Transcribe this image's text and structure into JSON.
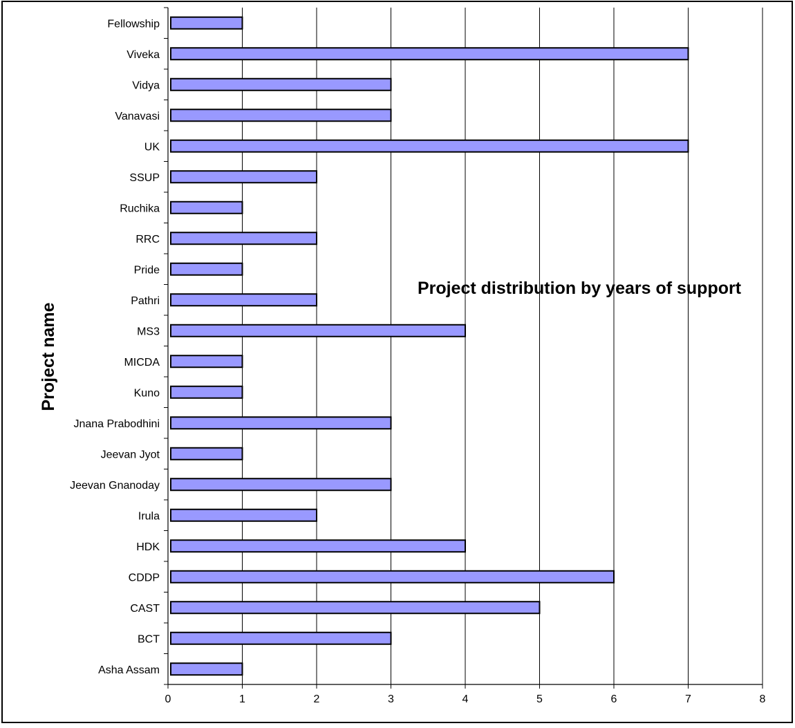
{
  "chart_data": {
    "type": "bar",
    "orientation": "horizontal",
    "title": "Project distribution by years of support",
    "ylabel": "Project name",
    "xlabel": "",
    "xlim": [
      0,
      8
    ],
    "x_ticks": [
      "0",
      "1",
      "2",
      "3",
      "4",
      "5",
      "6",
      "7",
      "8"
    ],
    "grid": "vertical",
    "legend": "none",
    "bar_color": "#9999ff",
    "bar_edge_color": "#000000",
    "categories": [
      "Fellowship",
      "Viveka",
      "Vidya",
      "Vanavasi",
      "UK",
      "SSUP",
      "Ruchika",
      "RRC",
      "Pride",
      "Pathri",
      "MS3",
      "MICDA",
      "Kuno",
      "Jnana Prabodhini",
      "Jeevan Jyot",
      "Jeevan Gnanoday",
      "Irula",
      "HDK",
      "CDDP",
      "CAST",
      "BCT",
      "Asha Assam"
    ],
    "values": [
      1,
      7,
      3,
      3,
      7,
      2,
      1,
      2,
      1,
      2,
      4,
      1,
      1,
      3,
      1,
      3,
      2,
      4,
      6,
      5,
      3,
      1
    ]
  }
}
